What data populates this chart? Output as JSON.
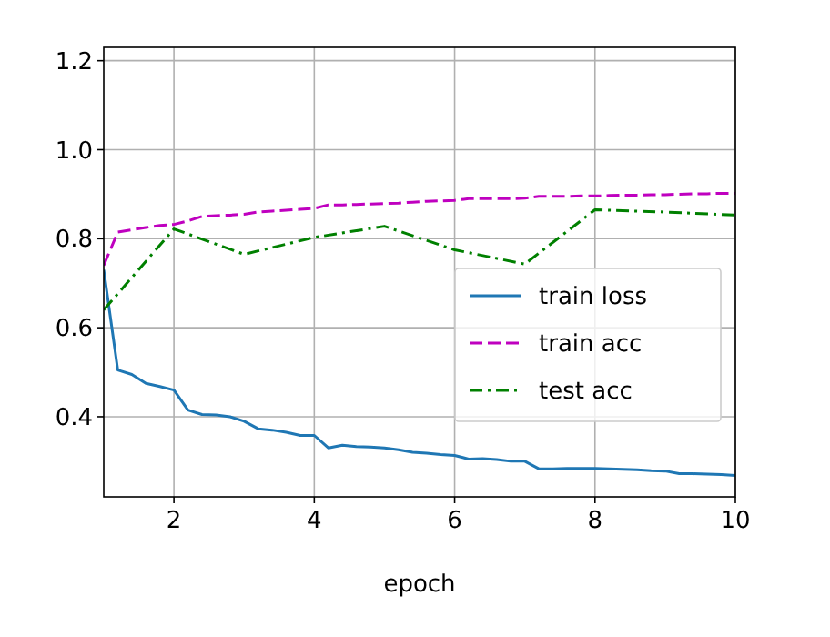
{
  "chart_data": {
    "type": "line",
    "xlabel": "epoch",
    "xlim": [
      1,
      10
    ],
    "xticks": [
      2,
      4,
      6,
      8,
      10
    ],
    "ylim": [
      0.22,
      1.23
    ],
    "yticks": [
      0.4,
      0.6,
      0.8,
      {
        "value": 1,
        "label": "1.0"
      },
      1.2
    ],
    "grid": true,
    "legend": "right",
    "marker": "none",
    "series": [
      {
        "name": "train loss",
        "color": "#1f77b4",
        "line_style": "solid",
        "x": [
          1,
          1.2,
          1.4,
          1.6,
          1.8,
          2,
          2.2,
          2.4,
          2.6,
          2.8,
          3,
          3.2,
          3.4,
          3.6,
          3.8,
          4,
          4.2,
          4.4,
          4.6,
          4.8,
          5,
          5.2,
          5.4,
          5.6,
          5.8,
          6,
          6.2,
          6.4,
          6.6,
          6.8,
          7,
          7.2,
          7.4,
          7.6,
          7.8,
          8,
          8.2,
          8.4,
          8.6,
          8.8,
          9,
          9.2,
          9.4,
          9.6,
          9.8,
          10
        ],
        "values": [
          0.73,
          0.505,
          0.495,
          0.475,
          0.468,
          0.46,
          0.415,
          0.405,
          0.404,
          0.4,
          0.39,
          0.373,
          0.37,
          0.365,
          0.358,
          0.358,
          0.33,
          0.336,
          0.333,
          0.332,
          0.33,
          0.326,
          0.32,
          0.318,
          0.315,
          0.313,
          0.305,
          0.306,
          0.304,
          0.3,
          0.3,
          0.283,
          0.283,
          0.284,
          0.284,
          0.284,
          0.283,
          0.282,
          0.281,
          0.279,
          0.278,
          0.272,
          0.272,
          0.271,
          0.27,
          0.268
        ]
      },
      {
        "name": "train acc",
        "color": "#bf00bf",
        "line_style": "dashed",
        "x": [
          1,
          1.2,
          1.4,
          1.6,
          1.8,
          2,
          2.2,
          2.4,
          2.6,
          2.8,
          3,
          3.2,
          3.4,
          3.6,
          3.8,
          4,
          4.2,
          4.4,
          4.6,
          4.8,
          5,
          5.2,
          5.4,
          5.6,
          5.8,
          6,
          6.2,
          6.4,
          6.6,
          6.8,
          7,
          7.2,
          7.4,
          7.6,
          7.8,
          8,
          8.2,
          8.4,
          8.6,
          8.8,
          9,
          9.2,
          9.4,
          9.6,
          9.8,
          10
        ],
        "values": [
          0.74,
          0.815,
          0.82,
          0.825,
          0.83,
          0.832,
          0.84,
          0.85,
          0.852,
          0.853,
          0.855,
          0.86,
          0.862,
          0.864,
          0.866,
          0.868,
          0.876,
          0.876,
          0.877,
          0.878,
          0.879,
          0.88,
          0.882,
          0.884,
          0.885,
          0.886,
          0.89,
          0.89,
          0.89,
          0.89,
          0.891,
          0.895,
          0.895,
          0.895,
          0.896,
          0.896,
          0.897,
          0.898,
          0.898,
          0.899,
          0.899,
          0.9,
          0.901,
          0.901,
          0.902,
          0.902
        ]
      },
      {
        "name": "test acc",
        "color": "#008000",
        "line_style": "dashdot",
        "x": [
          1,
          2,
          3,
          4,
          5,
          6,
          7,
          8,
          9,
          10
        ],
        "values": [
          0.64,
          0.822,
          0.765,
          0.803,
          0.828,
          0.775,
          0.743,
          0.865,
          0.86,
          0.853
        ]
      }
    ]
  }
}
